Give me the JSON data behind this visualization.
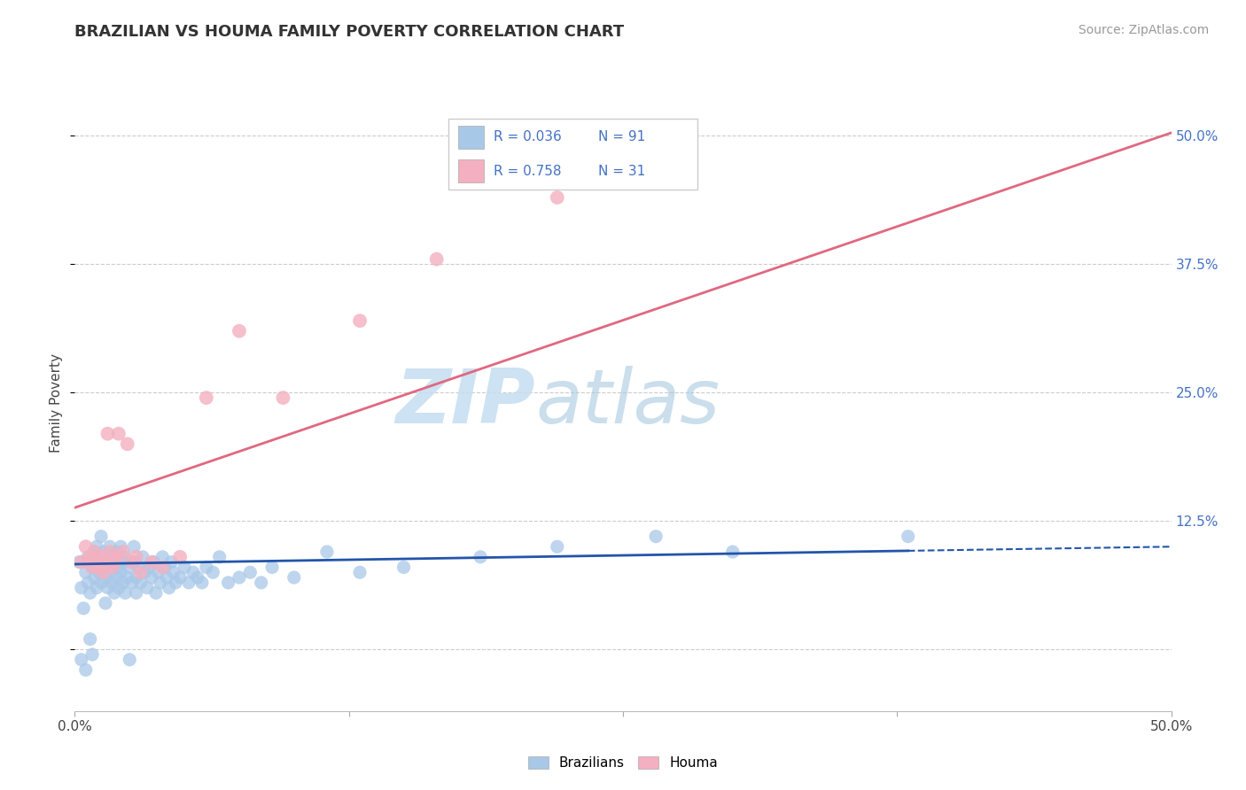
{
  "title": "BRAZILIAN VS HOUMA FAMILY POVERTY CORRELATION CHART",
  "source": "Source: ZipAtlas.com",
  "ylabel": "Family Poverty",
  "xlim": [
    0.0,
    0.5
  ],
  "ylim": [
    -0.06,
    0.54
  ],
  "y_ticks": [
    0.0,
    0.125,
    0.25,
    0.375,
    0.5
  ],
  "y_tick_labels_right": [
    "",
    "12.5%",
    "25.0%",
    "37.5%",
    "50.0%"
  ],
  "x_tick_labels": [
    "0.0%",
    "",
    "",
    "",
    "50.0%"
  ],
  "blue_color": "#a8c8e8",
  "pink_color": "#f4b0c0",
  "blue_line_color": "#2255aa",
  "pink_line_color": "#e06880",
  "watermark_zip": "ZIP",
  "watermark_atlas": "atlas",
  "legend_label1": "Brazilians",
  "legend_label2": "Houma",
  "blue_scatter_x": [
    0.002,
    0.003,
    0.003,
    0.004,
    0.005,
    0.005,
    0.006,
    0.006,
    0.007,
    0.007,
    0.008,
    0.008,
    0.009,
    0.009,
    0.01,
    0.01,
    0.011,
    0.011,
    0.012,
    0.012,
    0.013,
    0.013,
    0.014,
    0.014,
    0.015,
    0.015,
    0.016,
    0.016,
    0.017,
    0.017,
    0.018,
    0.018,
    0.019,
    0.019,
    0.02,
    0.02,
    0.021,
    0.021,
    0.022,
    0.022,
    0.023,
    0.023,
    0.024,
    0.025,
    0.025,
    0.026,
    0.027,
    0.027,
    0.028,
    0.028,
    0.029,
    0.03,
    0.031,
    0.032,
    0.033,
    0.034,
    0.035,
    0.036,
    0.037,
    0.038,
    0.039,
    0.04,
    0.041,
    0.042,
    0.043,
    0.044,
    0.045,
    0.046,
    0.048,
    0.05,
    0.052,
    0.054,
    0.056,
    0.058,
    0.06,
    0.063,
    0.066,
    0.07,
    0.075,
    0.08,
    0.085,
    0.09,
    0.1,
    0.115,
    0.13,
    0.15,
    0.185,
    0.22,
    0.265,
    0.3,
    0.38
  ],
  "blue_scatter_y": [
    0.085,
    0.06,
    -0.01,
    0.04,
    0.075,
    -0.02,
    0.065,
    0.09,
    0.055,
    0.01,
    0.08,
    -0.005,
    0.07,
    0.095,
    0.06,
    0.1,
    0.075,
    0.085,
    0.065,
    0.11,
    0.08,
    0.095,
    0.07,
    0.045,
    0.085,
    0.06,
    0.075,
    0.1,
    0.065,
    0.08,
    0.09,
    0.055,
    0.07,
    0.095,
    0.06,
    0.08,
    0.075,
    0.1,
    0.065,
    0.085,
    0.055,
    0.09,
    0.07,
    0.08,
    -0.01,
    0.065,
    0.085,
    0.1,
    0.07,
    0.055,
    0.08,
    0.065,
    0.09,
    0.075,
    0.06,
    0.08,
    0.07,
    0.085,
    0.055,
    0.075,
    0.065,
    0.09,
    0.08,
    0.07,
    0.06,
    0.085,
    0.075,
    0.065,
    0.07,
    0.08,
    0.065,
    0.075,
    0.07,
    0.065,
    0.08,
    0.075,
    0.09,
    0.065,
    0.07,
    0.075,
    0.065,
    0.08,
    0.07,
    0.095,
    0.075,
    0.08,
    0.09,
    0.1,
    0.11,
    0.095,
    0.11
  ],
  "pink_scatter_x": [
    0.003,
    0.005,
    0.006,
    0.007,
    0.008,
    0.009,
    0.01,
    0.011,
    0.012,
    0.013,
    0.014,
    0.015,
    0.016,
    0.017,
    0.018,
    0.019,
    0.02,
    0.022,
    0.024,
    0.026,
    0.028,
    0.03,
    0.035,
    0.04,
    0.048,
    0.06,
    0.075,
    0.095,
    0.13,
    0.165,
    0.22
  ],
  "pink_scatter_y": [
    0.085,
    0.1,
    0.085,
    0.09,
    0.08,
    0.095,
    0.085,
    0.08,
    0.09,
    0.075,
    0.085,
    0.21,
    0.095,
    0.08,
    0.085,
    0.09,
    0.21,
    0.095,
    0.2,
    0.085,
    0.09,
    0.075,
    0.085,
    0.08,
    0.09,
    0.245,
    0.31,
    0.245,
    0.32,
    0.38,
    0.44
  ],
  "blue_line_x_start": 0.0,
  "blue_line_x_solid_end": 0.38,
  "blue_line_x_dash_end": 0.5,
  "blue_line_y_start": 0.083,
  "blue_line_y_solid_end": 0.096,
  "blue_line_y_dash_end": 0.1,
  "pink_line_x_start": 0.0,
  "pink_line_x_end": 0.5,
  "pink_line_y_start": 0.138,
  "pink_line_y_end": 0.503
}
